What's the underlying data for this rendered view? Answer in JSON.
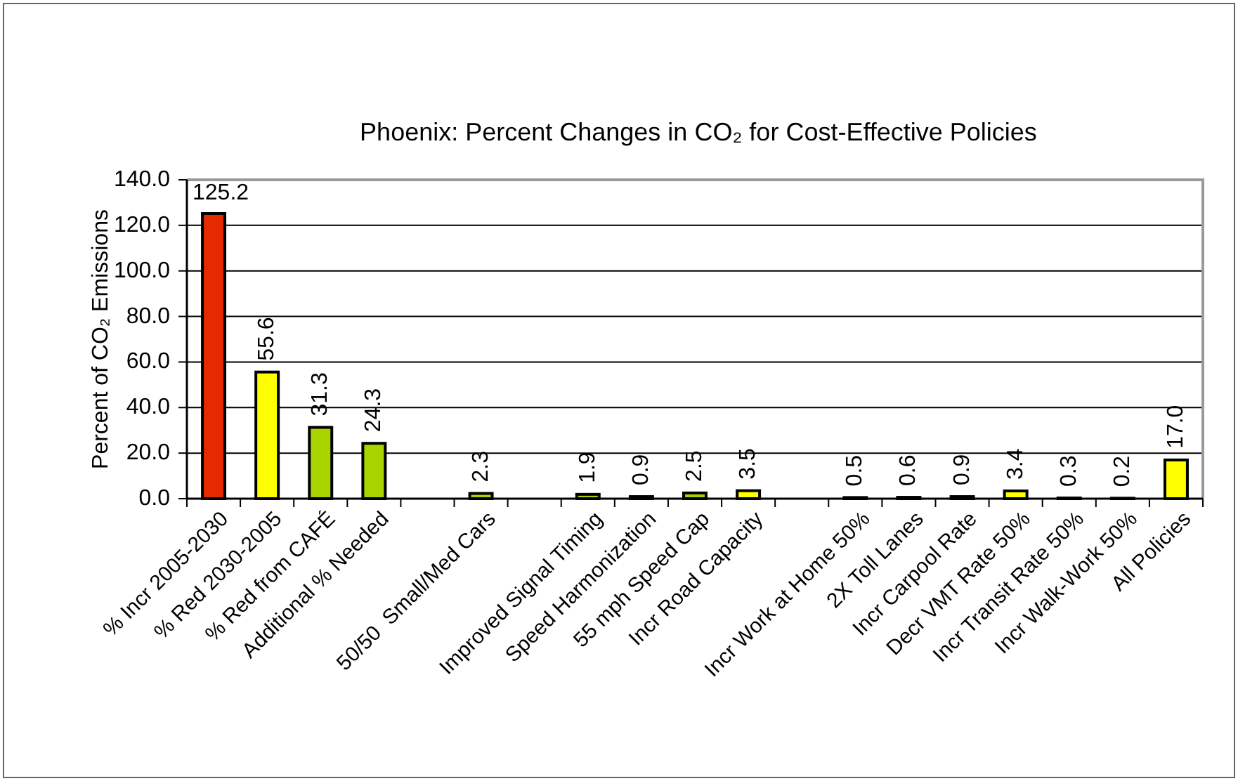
{
  "chart_data": {
    "type": "bar",
    "title": "Phoenix: Percent Changes in CO₂ for Cost-Effective Policies",
    "ylabel": "Percent of CO₂ Emissions",
    "categories": [
      "% Incr 2005-2030",
      "% Red 2030-2005",
      "% Red from CAFÉ",
      "Additional % Needed",
      null,
      "50/50  Small/Med Cars",
      null,
      "Improved Signal Timing",
      "Speed Harmonization",
      "55 mph Speed Cap",
      "Incr Road Capacity",
      null,
      "Incr Work at Home 50%",
      "2X Toll Lanes",
      "Incr Carpool Rate",
      "Decr VMT Rate 50%",
      "Incr Transit Rate 50%",
      "Incr Walk-Work 50%",
      "All Policies"
    ],
    "values": [
      125.2,
      55.6,
      31.3,
      24.3,
      null,
      2.3,
      null,
      1.9,
      0.9,
      2.5,
      3.5,
      null,
      0.5,
      0.6,
      0.9,
      3.4,
      0.3,
      0.2,
      17.0
    ],
    "colors": [
      "#e52a00",
      "#ffff00",
      "#a8d400",
      "#a8d400",
      null,
      "#a8d400",
      null,
      "#a8d400",
      "#a8d400",
      "#a8d400",
      "#ffff00",
      null,
      "#a8d400",
      "#a8d400",
      "#a8d400",
      "#ffff00",
      "#a8d400",
      "#a8d400",
      "#ffff00"
    ],
    "value_labels": [
      "125.2",
      "55.6",
      "31.3",
      "24.3",
      null,
      "2.3",
      null,
      "1.9",
      "0.9",
      "2.5",
      "3.5",
      null,
      "0.5",
      "0.6",
      "0.9",
      "3.4",
      "0.3",
      "0.2",
      "17.0"
    ],
    "ylim": [
      0,
      140
    ],
    "yticks": [
      {
        "value": 0,
        "label": "0.0"
      },
      {
        "value": 20,
        "label": "20.0"
      },
      {
        "value": 40,
        "label": "40.0"
      },
      {
        "value": 60,
        "label": "60.0"
      },
      {
        "value": 80,
        "label": "80.0"
      },
      {
        "value": 100,
        "label": "100.0"
      },
      {
        "value": 120,
        "label": "120.0"
      },
      {
        "value": 140,
        "label": "140.0"
      }
    ],
    "grid": "y"
  }
}
